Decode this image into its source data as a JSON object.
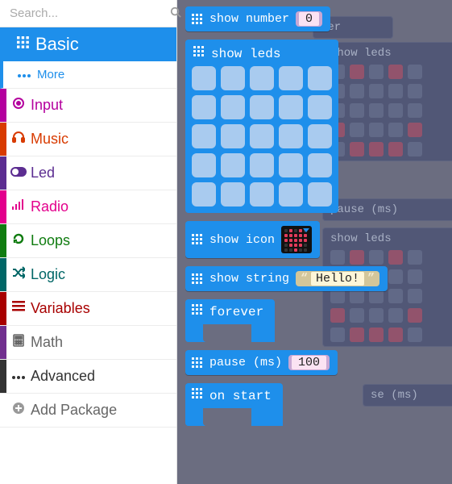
{
  "colors": {
    "accent": "#1e8feb",
    "workspace_bg": "#6b6d80",
    "led_cell": "#a9cbef",
    "num_slot_outer": "#c8a8d4",
    "num_slot_inner": "#fbe3f3",
    "str_slot_outer": "#d3c69a",
    "str_slot_inner": "#fff6d8"
  },
  "search": {
    "placeholder": "Search..."
  },
  "categories": [
    {
      "id": "basic",
      "label": "Basic",
      "icon": "grid",
      "color": "#1e8feb",
      "icon_color": "#1e8feb",
      "active": true
    },
    {
      "id": "more",
      "label": "More",
      "icon": "dots",
      "color": "#1e8feb",
      "is_more": true
    },
    {
      "id": "input",
      "label": "Input",
      "icon": "target",
      "color": "#b4009e",
      "icon_color": "#b4009e"
    },
    {
      "id": "music",
      "label": "Music",
      "icon": "headphone",
      "color": "#d83b01",
      "icon_color": "#d83b01"
    },
    {
      "id": "led",
      "label": "Led",
      "icon": "toggle",
      "color": "#5c2d91",
      "icon_color": "#5c2d91"
    },
    {
      "id": "radio",
      "label": "Radio",
      "icon": "bars",
      "color": "#e3008c",
      "icon_color": "#e3008c"
    },
    {
      "id": "loops",
      "label": "Loops",
      "icon": "refresh",
      "color": "#107c10",
      "icon_color": "#107c10"
    },
    {
      "id": "logic",
      "label": "Logic",
      "icon": "shuffle",
      "color": "#006666",
      "icon_color": "#006666"
    },
    {
      "id": "variables",
      "label": "Variables",
      "icon": "list",
      "color": "#a80000",
      "icon_color": "#a80000"
    },
    {
      "id": "math",
      "label": "Math",
      "icon": "calc",
      "color": "#712f8f",
      "icon_color": "#666666"
    },
    {
      "id": "advanced",
      "label": "Advanced",
      "icon": "ellipsis",
      "color": "#333333",
      "icon_color": "#333333"
    },
    {
      "id": "addpkg",
      "label": "Add Package",
      "icon": "plus",
      "color": "#ffffff",
      "icon_color": "#666666"
    }
  ],
  "blocks": {
    "show_number": {
      "label": "show number",
      "value": "0"
    },
    "show_leds": {
      "label": "show leds",
      "grid": {
        "rows": 5,
        "cols": 5,
        "cell_size": 30,
        "gap": 6
      }
    },
    "show_icon": {
      "label": "show icon",
      "matrix": [
        [
          0,
          1,
          0,
          1,
          0
        ],
        [
          1,
          1,
          1,
          1,
          1
        ],
        [
          1,
          1,
          1,
          1,
          1
        ],
        [
          0,
          1,
          1,
          1,
          0
        ],
        [
          0,
          0,
          1,
          0,
          0
        ]
      ]
    },
    "show_string": {
      "label": "show string",
      "value": "Hello!"
    },
    "forever": {
      "label": "forever"
    },
    "pause": {
      "label": "pause (ms)",
      "value": "100"
    },
    "on_start": {
      "label": "on start"
    }
  },
  "ghosts": {
    "g1": {
      "label": "ver"
    },
    "g2": {
      "label": "show leds"
    },
    "g3": {
      "label": "pause (ms)"
    },
    "g4": {
      "label": "show leds"
    },
    "g5": {
      "label": "se (ms)"
    }
  }
}
